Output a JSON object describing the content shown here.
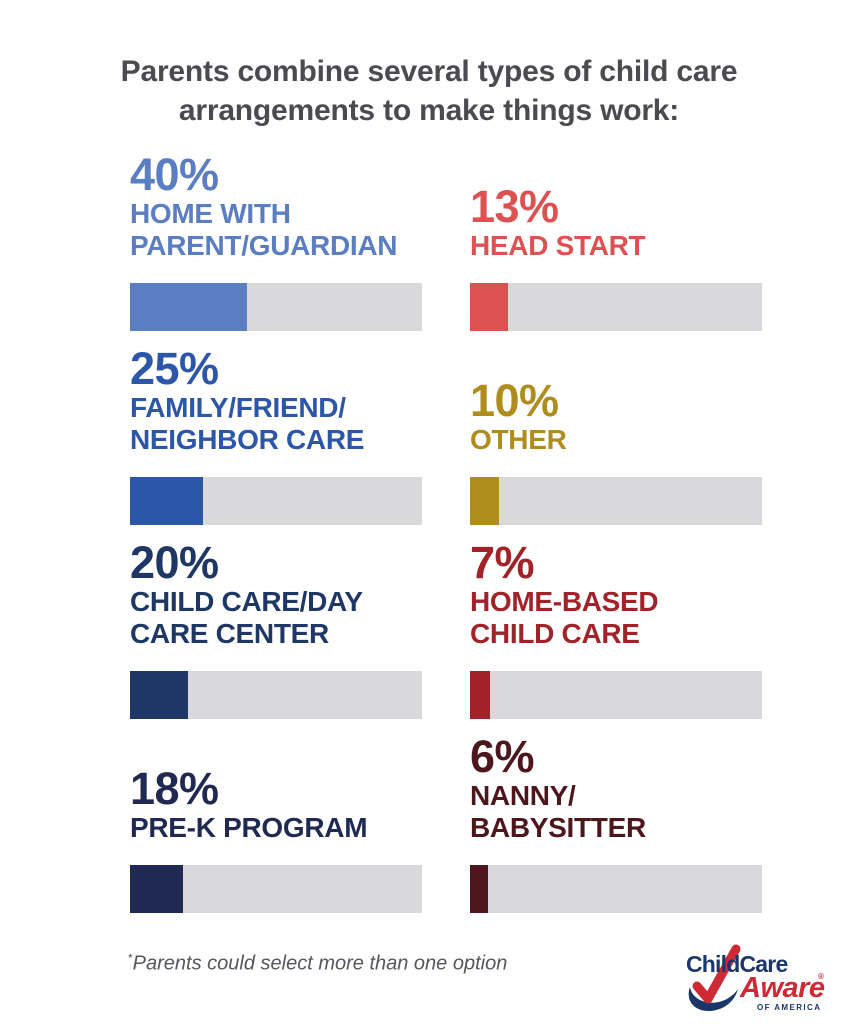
{
  "title": "Parents combine several types of child care arrangements to make things work:",
  "footnote": {
    "asterisk": "*",
    "text": "Parents could select more than one option"
  },
  "logo": {
    "childcare": "ChildCare",
    "aware": "Aware",
    "registered": "®",
    "of_america": "OF AMERICA",
    "navy": "#1B3668",
    "red": "#CE2A36"
  },
  "colors": {
    "title_gray": "#4A4A4F",
    "bar_track_gray": "#D9D9DB",
    "background": "#FFFFFF"
  },
  "chart_data": {
    "type": "bar",
    "title": "Parents combine several types of child care arrangements to make things work:",
    "note": "*Parents could select more than one option",
    "orientation": "horizontal",
    "xlim": [
      0,
      100
    ],
    "categories": [
      "HOME WITH PARENT/GUARDIAN",
      "HEAD START",
      "FAMILY/FRIEND/NEIGHBOR CARE",
      "OTHER",
      "CHILD CARE/DAY CARE CENTER",
      "HOME-BASED CHILD CARE",
      "PRE-K PROGRAM",
      "NANNY/BABYSITTER"
    ],
    "values": [
      40,
      13,
      25,
      10,
      20,
      7,
      18,
      6
    ],
    "items": [
      {
        "value": 40,
        "value_label": "40%",
        "label": "HOME WITH\nPARENT/GUARDIAN",
        "color": "#5A7EC1"
      },
      {
        "value": 13,
        "value_label": "13%",
        "label": "HEAD START",
        "color": "#DD5152"
      },
      {
        "value": 25,
        "value_label": "25%",
        "label": "FAMILY/FRIEND/\nNEIGHBOR CARE",
        "color": "#2C56A7"
      },
      {
        "value": 10,
        "value_label": "10%",
        "label": "OTHER",
        "color": "#AE8C1E"
      },
      {
        "value": 20,
        "value_label": "20%",
        "label": "CHILD CARE/DAY\nCARE CENTER",
        "color": "#1E3764"
      },
      {
        "value": 7,
        "value_label": "7%",
        "label": "HOME-BASED\nCHILD CARE",
        "color": "#A2222A"
      },
      {
        "value": 18,
        "value_label": "18%",
        "label": "PRE-K PROGRAM",
        "color": "#1F2951"
      },
      {
        "value": 6,
        "value_label": "6%",
        "label": "NANNY/\nBABYSITTER",
        "color": "#4C161C"
      }
    ]
  }
}
